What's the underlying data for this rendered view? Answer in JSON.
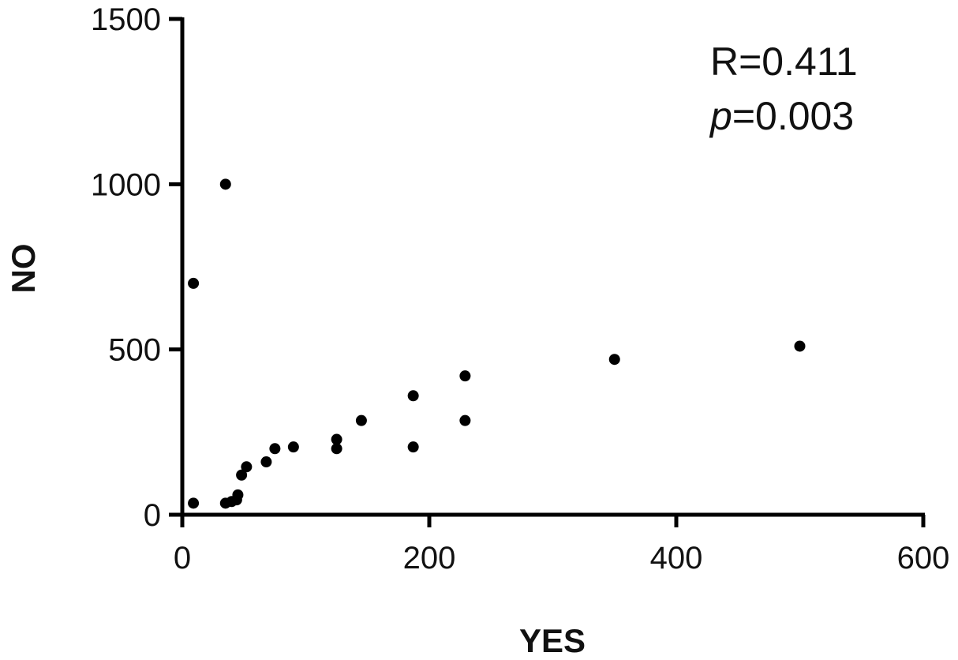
{
  "chart_data": {
    "type": "scatter",
    "title": "",
    "xlabel": "YES",
    "ylabel": "NO",
    "xlim": [
      0,
      600
    ],
    "ylim": [
      0,
      1500
    ],
    "xticks": [
      0,
      200,
      400,
      600
    ],
    "yticks": [
      0,
      500,
      1000,
      1500
    ],
    "xtick_labels": [
      "0",
      "200",
      "400",
      "600"
    ],
    "ytick_labels": [
      "0",
      "500",
      "1000",
      "1500"
    ],
    "grid": false,
    "legend": "none",
    "marker_color": "#000000",
    "annotations": {
      "r_text": "R=0.411",
      "p_label": "p",
      "p_value": "=0.003"
    },
    "points": [
      {
        "x": 9,
        "y": 700
      },
      {
        "x": 35,
        "y": 1000
      },
      {
        "x": 9,
        "y": 35
      },
      {
        "x": 35,
        "y": 35
      },
      {
        "x": 40,
        "y": 40
      },
      {
        "x": 44,
        "y": 45
      },
      {
        "x": 45,
        "y": 60
      },
      {
        "x": 48,
        "y": 120
      },
      {
        "x": 52,
        "y": 145
      },
      {
        "x": 68,
        "y": 160
      },
      {
        "x": 75,
        "y": 200
      },
      {
        "x": 90,
        "y": 205
      },
      {
        "x": 125,
        "y": 200
      },
      {
        "x": 125,
        "y": 228
      },
      {
        "x": 145,
        "y": 285
      },
      {
        "x": 187,
        "y": 205
      },
      {
        "x": 187,
        "y": 360
      },
      {
        "x": 229,
        "y": 285
      },
      {
        "x": 229,
        "y": 420
      },
      {
        "x": 350,
        "y": 470
      },
      {
        "x": 500,
        "y": 510
      }
    ]
  }
}
